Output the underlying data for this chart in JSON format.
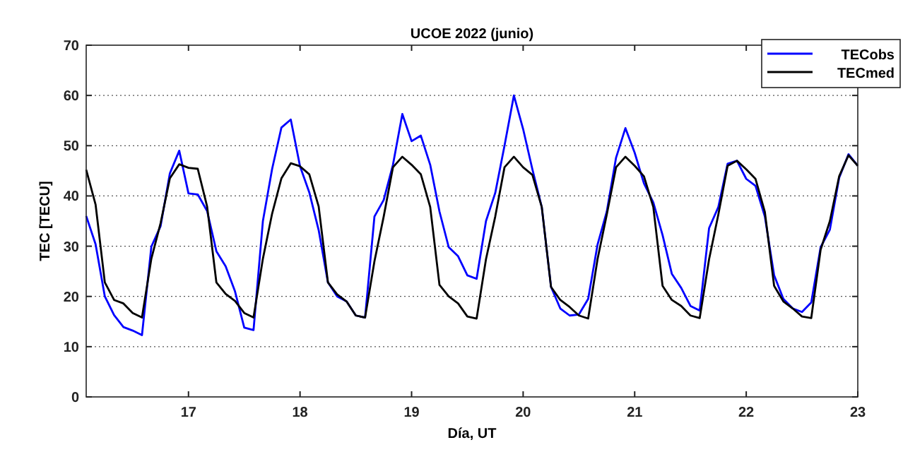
{
  "chart_data": {
    "type": "line",
    "title": "UCOE 2022 (junio)",
    "xlabel": "Día, UT",
    "ylabel": "TEC [TECU]",
    "x": [
      16.083,
      16.167,
      16.25,
      16.333,
      16.417,
      16.5,
      16.583,
      16.667,
      16.75,
      16.833,
      16.917,
      17,
      17.083,
      17.167,
      17.25,
      17.333,
      17.417,
      17.5,
      17.583,
      17.667,
      17.75,
      17.833,
      17.917,
      18,
      18.083,
      18.167,
      18.25,
      18.333,
      18.417,
      18.5,
      18.583,
      18.667,
      18.75,
      18.833,
      18.917,
      19,
      19.083,
      19.167,
      19.25,
      19.333,
      19.417,
      19.5,
      19.583,
      19.667,
      19.75,
      19.833,
      19.917,
      20,
      20.083,
      20.167,
      20.25,
      20.333,
      20.417,
      20.5,
      20.583,
      20.667,
      20.75,
      20.833,
      20.917,
      21,
      21.083,
      21.167,
      21.25,
      21.333,
      21.417,
      21.5,
      21.583,
      21.667,
      21.75,
      21.833,
      21.917,
      22,
      22.083,
      22.167,
      22.25,
      22.333,
      22.417,
      22.5,
      22.583,
      22.667,
      22.75,
      22.833,
      22.917,
      23
    ],
    "series": [
      {
        "name": "TECobs",
        "color": "#0000ff",
        "values": [
          36,
          30.4,
          20,
          16.3,
          13.9,
          13.2,
          12.3,
          29.9,
          34,
          44.5,
          49,
          40.5,
          40.3,
          37,
          29,
          26,
          21,
          13.8,
          13.3,
          35,
          45.4,
          53.6,
          55.2,
          45.9,
          40.7,
          33.2,
          22.8,
          20,
          19,
          16.2,
          15.8,
          35.9,
          39.2,
          46.2,
          56.3,
          50.9,
          52,
          46.2,
          36.9,
          29.8,
          28,
          24.2,
          23.5,
          35,
          40.6,
          50,
          60,
          53.3,
          45.3,
          37.8,
          21.9,
          17.6,
          16.2,
          16.4,
          19.5,
          30.3,
          36.9,
          47.6,
          53.5,
          48.6,
          42.5,
          38.7,
          32.2,
          24.5,
          21.7,
          18.1,
          17.2,
          33.6,
          37.8,
          46.4,
          47,
          43.4,
          42,
          35.9,
          24.2,
          19.5,
          17.6,
          16.9,
          18.8,
          29.8,
          33.3,
          43.6,
          48.3,
          46
        ]
      },
      {
        "name": "TECmed",
        "color": "#000000",
        "values": [
          45.2,
          38.3,
          22.8,
          19.3,
          18.6,
          16.7,
          15.8,
          27.5,
          34.6,
          43.5,
          46.3,
          45.6,
          45.4,
          37.9,
          22.8,
          20.5,
          19.1,
          16.7,
          15.8,
          27.5,
          36.5,
          43.5,
          46.5,
          45.9,
          44.3,
          37.9,
          22.8,
          20.4,
          19,
          16.2,
          15.8,
          27,
          35.9,
          45.7,
          47.8,
          46.2,
          44.3,
          37.8,
          22.3,
          20,
          18.6,
          16,
          15.6,
          27.4,
          35.9,
          45.7,
          47.8,
          45.7,
          44.2,
          37.8,
          21.9,
          19.3,
          17.9,
          16.2,
          15.6,
          27.4,
          36.3,
          45.7,
          47.8,
          46,
          43.9,
          37.8,
          22.1,
          19.3,
          18.1,
          16.2,
          15.7,
          27.4,
          36.3,
          46,
          47,
          45.3,
          43.4,
          36.8,
          22.1,
          19,
          17.6,
          16,
          15.7,
          29.3,
          35,
          43.9,
          48.1,
          46
        ]
      }
    ],
    "xlim": [
      16.083,
      23
    ],
    "xticks": [
      17,
      18,
      19,
      20,
      21,
      22,
      23
    ],
    "ylim": [
      0,
      70
    ],
    "yticks": [
      0,
      10,
      20,
      30,
      40,
      50,
      60,
      70
    ],
    "grid": "y",
    "legend": "top right",
    "marker": "none",
    "line_style": "solid"
  }
}
